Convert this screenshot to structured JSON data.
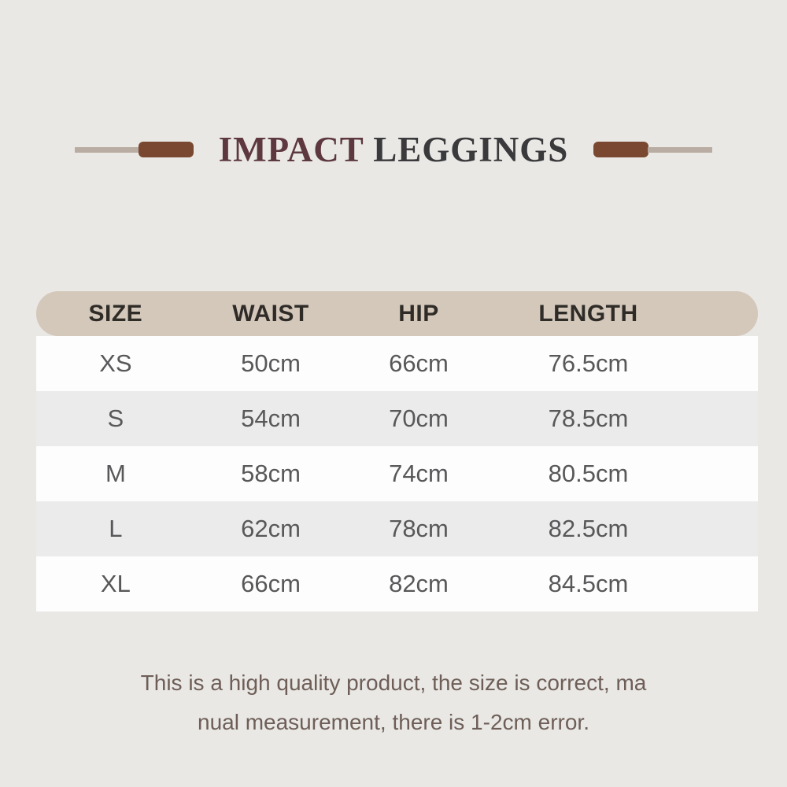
{
  "title": {
    "part1": "IMPACT",
    "part2": "LEGGINGS"
  },
  "decor": {
    "bar_color": "#7a4730",
    "line_color": "#b9aca2"
  },
  "colors": {
    "page_background": "#e9e8e5",
    "header_bar": "#d4c8bb",
    "row_white": "#fdfdfd",
    "row_gray": "#ebebeb",
    "title_accent": "#5d383f",
    "title_dark": "#3a393b",
    "cell_text": "#58585a",
    "note_text": "#6e5e57"
  },
  "chart_data": {
    "type": "table",
    "title": "IMPACT LEGGINGS",
    "headers": [
      "SIZE",
      "WAIST",
      "HIP",
      "LENGTH"
    ],
    "rows": [
      [
        "XS",
        "50cm",
        "66cm",
        "76.5cm"
      ],
      [
        "S",
        "54cm",
        "70cm",
        "78.5cm"
      ],
      [
        "M",
        "58cm",
        "74cm",
        "80.5cm"
      ],
      [
        "L",
        "62cm",
        "78cm",
        "82.5cm"
      ],
      [
        "XL",
        "66cm",
        "82cm",
        "84.5cm"
      ]
    ]
  },
  "table": {
    "headers": [
      "SIZE",
      "WAIST",
      "HIP",
      "LENGTH"
    ],
    "rows": [
      [
        "XS",
        "50cm",
        "66cm",
        "76.5cm"
      ],
      [
        "S",
        "54cm",
        "70cm",
        "78.5cm"
      ],
      [
        "M",
        "58cm",
        "74cm",
        "80.5cm"
      ],
      [
        "L",
        "62cm",
        "78cm",
        "82.5cm"
      ],
      [
        "XL",
        "66cm",
        "82cm",
        "84.5cm"
      ]
    ]
  },
  "note": {
    "line1": "This is a high quality product, the size is correct, ma",
    "line2": "nual measurement, there is 1-2cm error."
  }
}
